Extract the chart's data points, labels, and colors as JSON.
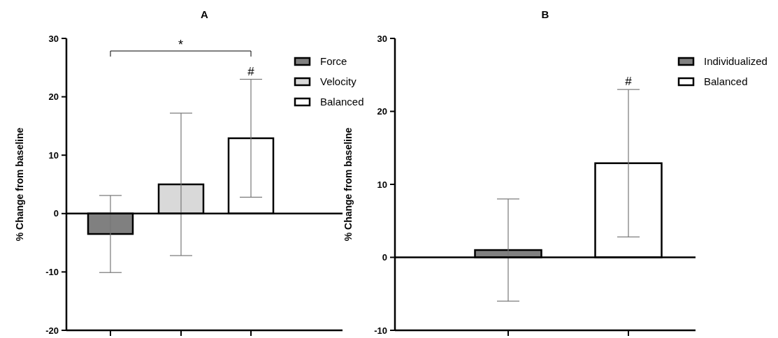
{
  "chart_data": [
    {
      "type": "bar",
      "title": "A",
      "ylabel": "% Change from baseline",
      "categories": [
        null,
        null,
        null
      ],
      "ylim": [
        -20,
        30
      ],
      "yticks": [
        -20,
        -10,
        0,
        10,
        20,
        30
      ],
      "legend": "top right",
      "series": [
        {
          "name": "Force",
          "color": "#808080",
          "values": [
            -3.5,
            null,
            null
          ],
          "errors": [
            6.6,
            null,
            null
          ]
        },
        {
          "name": "Velocity",
          "color": "#d9d9d9",
          "values": [
            null,
            5,
            null
          ],
          "errors": [
            null,
            12.2,
            null
          ]
        },
        {
          "name": "Balanced",
          "color": "#ffffff",
          "values": [
            null,
            null,
            12.9
          ],
          "errors": [
            null,
            null,
            10.1
          ]
        }
      ],
      "annotations": [
        "*",
        "#"
      ]
    },
    {
      "type": "bar",
      "title": "B",
      "ylabel": "% Change from baseline",
      "categories": [
        null,
        null
      ],
      "ylim": [
        -10,
        30
      ],
      "yticks": [
        -10,
        0,
        10,
        20,
        30
      ],
      "legend": "top right",
      "series": [
        {
          "name": "Individualized",
          "color": "#808080",
          "values": [
            1,
            null
          ],
          "errors": [
            7,
            null
          ]
        },
        {
          "name": "Balanced",
          "color": "#ffffff",
          "values": [
            null,
            12.9
          ],
          "errors": [
            null,
            10.1
          ]
        }
      ],
      "annotations": [
        "#"
      ]
    }
  ]
}
